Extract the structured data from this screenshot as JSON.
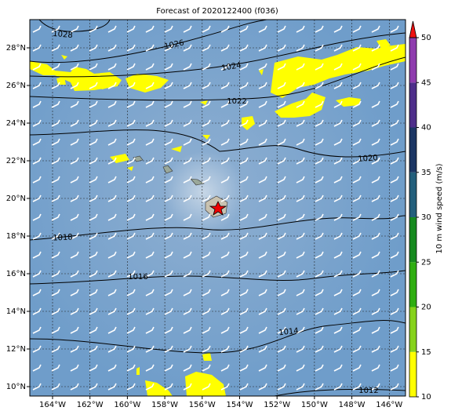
{
  "title": "Forecast of 2020122400 (f036)",
  "lon_labels": [
    "164°W",
    "162°W",
    "160°W",
    "158°W",
    "156°W",
    "154°W",
    "152°W",
    "150°W",
    "148°W",
    "146°W"
  ],
  "lat_labels": [
    "28°N",
    "26°N",
    "24°N",
    "22°N",
    "20°N",
    "18°N",
    "16°N",
    "14°N",
    "12°N",
    "10°N"
  ],
  "isobar_labels": [
    "1028",
    "1026",
    "1024",
    "1022",
    "1020",
    "1018",
    "1016",
    "1014",
    "1012"
  ],
  "colorbar": {
    "label": "10 m wind speed (m/s)",
    "lim": [
      10,
      50
    ],
    "ticks": [
      10,
      15,
      20,
      25,
      30,
      35,
      40,
      45,
      50
    ],
    "colors": [
      "#ffff00",
      "#86d21c",
      "#2fae12",
      "#168a1f",
      "#235f7c",
      "#1c3664",
      "#4e2e8a",
      "#8f3cae"
    ],
    "extend_color": "#ee1111"
  }
}
